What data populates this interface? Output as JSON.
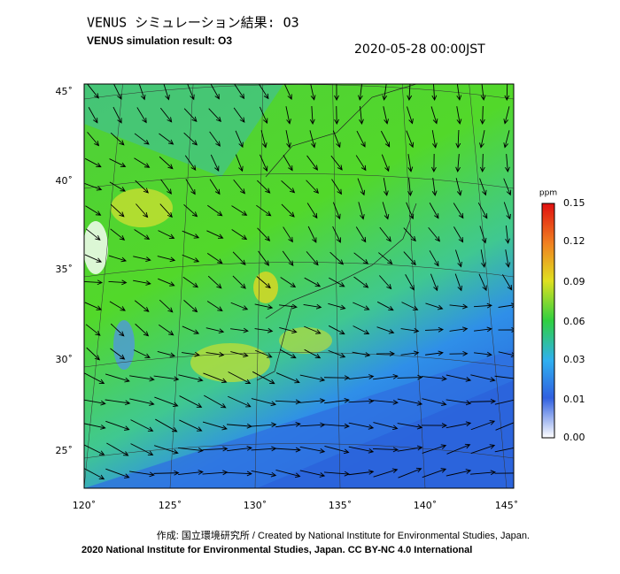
{
  "header": {
    "title": "VENUS シミュレーション結果: O3",
    "subtitle": "VENUS simulation result: O3",
    "datetime": "2020-05-28 00:00JST"
  },
  "map": {
    "lat_labels": [
      "45˚",
      "40˚",
      "35˚",
      "30˚",
      "25˚"
    ],
    "lon_labels": [
      "120˚",
      "125˚",
      "130˚",
      "135˚",
      "140˚",
      "145˚"
    ]
  },
  "colorbar": {
    "unit": "ppm",
    "labels": [
      "0.15",
      "0.12",
      "0.09",
      "0.06",
      "0.03",
      "0.01",
      "0.00"
    ]
  },
  "footer": {
    "credit": "作成: 国立環境研究所 / Created by National Institute for Environmental Studies, Japan.",
    "license": "2020 National Institute for Environmental Studies, Japan. CC BY-NC 4.0 International"
  }
}
